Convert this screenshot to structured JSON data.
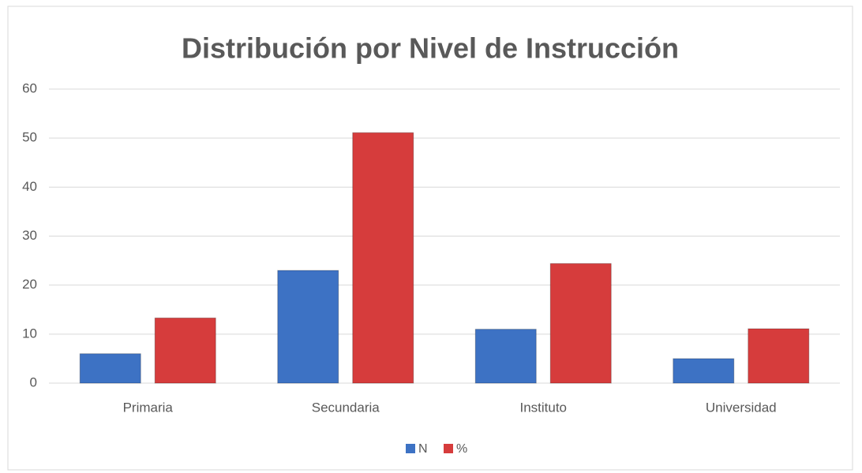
{
  "chart_data": {
    "type": "bar",
    "title": "Distribución por Nivel de Instrucción",
    "categories": [
      "Primaria",
      "Secundaria",
      "Instituto",
      "Universidad"
    ],
    "series": [
      {
        "name": "N",
        "color": "#3d72c4",
        "values": [
          6,
          23,
          11,
          5
        ]
      },
      {
        "name": "%",
        "color": "#d63c3c",
        "values": [
          13.3,
          51.1,
          24.4,
          11.1
        ]
      }
    ],
    "ylim": [
      0,
      60
    ],
    "yticks": [
      0,
      10,
      20,
      30,
      40,
      50,
      60
    ],
    "grid": true,
    "legend": "bottom"
  }
}
